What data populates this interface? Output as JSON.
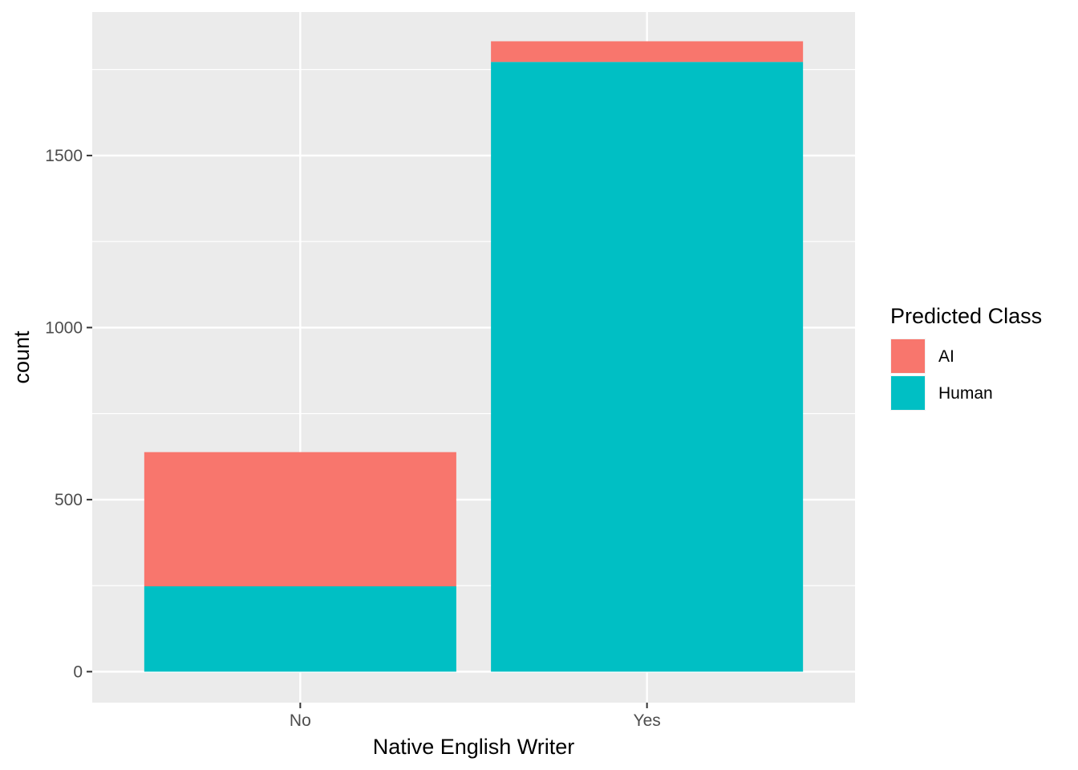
{
  "chart_data": {
    "type": "bar",
    "stacked": true,
    "categories": [
      "No",
      "Yes"
    ],
    "series": [
      {
        "name": "AI",
        "color": "#F8766D",
        "values": [
          390,
          60
        ]
      },
      {
        "name": "Human",
        "color": "#00BFC4",
        "values": [
          248,
          1772
        ]
      }
    ],
    "xlabel": "Native English Writer",
    "ylabel": "count",
    "ylim": [
      -90,
      1917
    ],
    "yticks": [
      0,
      500,
      1000,
      1500
    ],
    "legend": {
      "title": "Predicted Class",
      "position": "right"
    },
    "grid": true,
    "panel_background": "#EBEBEB"
  }
}
